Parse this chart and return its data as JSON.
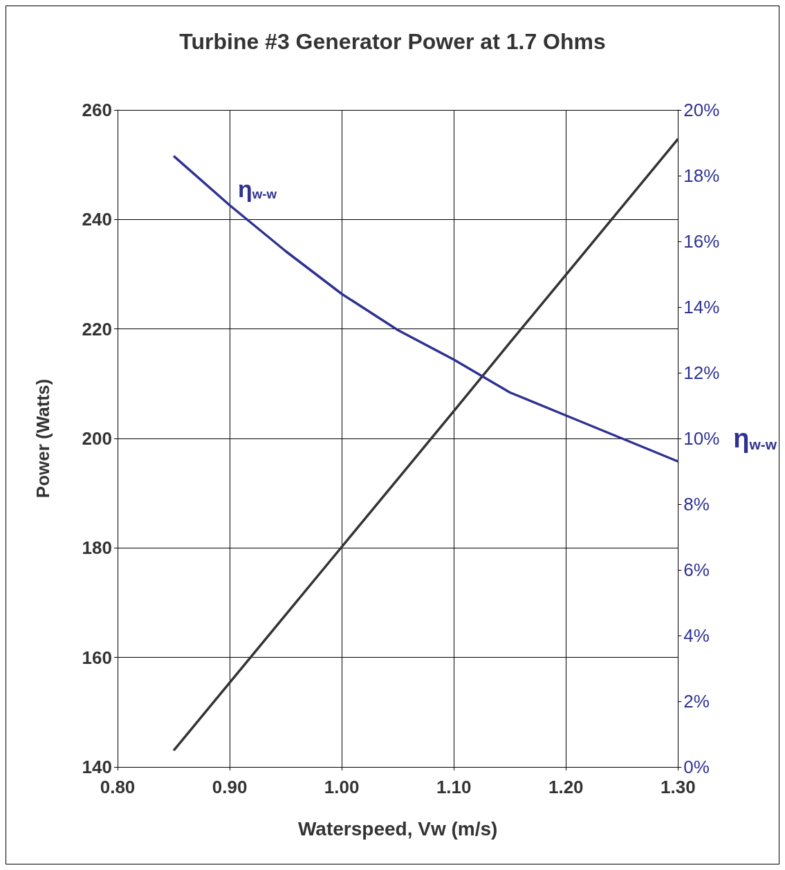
{
  "chart_data": {
    "type": "line",
    "title": "Turbine #3 Generator Power at 1.7 Ohms",
    "xlabel": "Waterspeed, Vw (m/s)",
    "ylabel": "Power (Watts)",
    "y2label": "η$_{w-w}$",
    "series": [
      {
        "color": "#333333",
        "x": [
          0.85,
          0.9,
          0.95,
          1.0,
          1.05,
          1.1,
          1.15,
          1.2,
          1.25,
          1.3
        ],
        "values": [
          143,
          155.4,
          167.8,
          180.2,
          192.6,
          205,
          217.5,
          229.9,
          242.3,
          254.7
        ]
      },
      {
        "name": "η$_{w-w}$",
        "axis": "y2",
        "color": "#2e3192",
        "x": [
          0.85,
          0.9,
          0.95,
          1.0,
          1.05,
          1.1,
          1.15,
          1.2,
          1.25,
          1.3
        ],
        "values": [
          18.6,
          17.1,
          15.7,
          14.4,
          13.3,
          12.4,
          11.4,
          10.7,
          10.0,
          9.3
        ]
      }
    ],
    "xlim": [
      0.8,
      1.3
    ],
    "xticks": [
      {
        "value": 0.8,
        "label": "0.80"
      },
      {
        "value": 0.9,
        "label": "0.90"
      },
      {
        "value": 1.0,
        "label": "1.00"
      },
      {
        "value": 1.1,
        "label": "1.10"
      },
      {
        "value": 1.2,
        "label": "1.20"
      },
      {
        "value": 1.3,
        "label": "1.30"
      }
    ],
    "ylim": [
      140,
      260
    ],
    "yticks": [
      140,
      160,
      180,
      200,
      220,
      240,
      260
    ],
    "y2lim": [
      0,
      20
    ],
    "y2ticks": [
      {
        "value": 0,
        "label": "0%"
      },
      {
        "value": 2,
        "label": "2%"
      },
      {
        "value": 4,
        "label": "4%"
      },
      {
        "value": 6,
        "label": "6%"
      },
      {
        "value": 8,
        "label": "8%"
      },
      {
        "value": 10,
        "label": "10%"
      },
      {
        "value": 12,
        "label": "12%"
      },
      {
        "value": 14,
        "label": "14%"
      },
      {
        "value": 16,
        "label": "16%"
      },
      {
        "value": 18,
        "label": "18%"
      },
      {
        "value": 20,
        "label": "20%"
      }
    ],
    "grid": true,
    "marker": "none",
    "line_style": "solid",
    "legend": false
  }
}
